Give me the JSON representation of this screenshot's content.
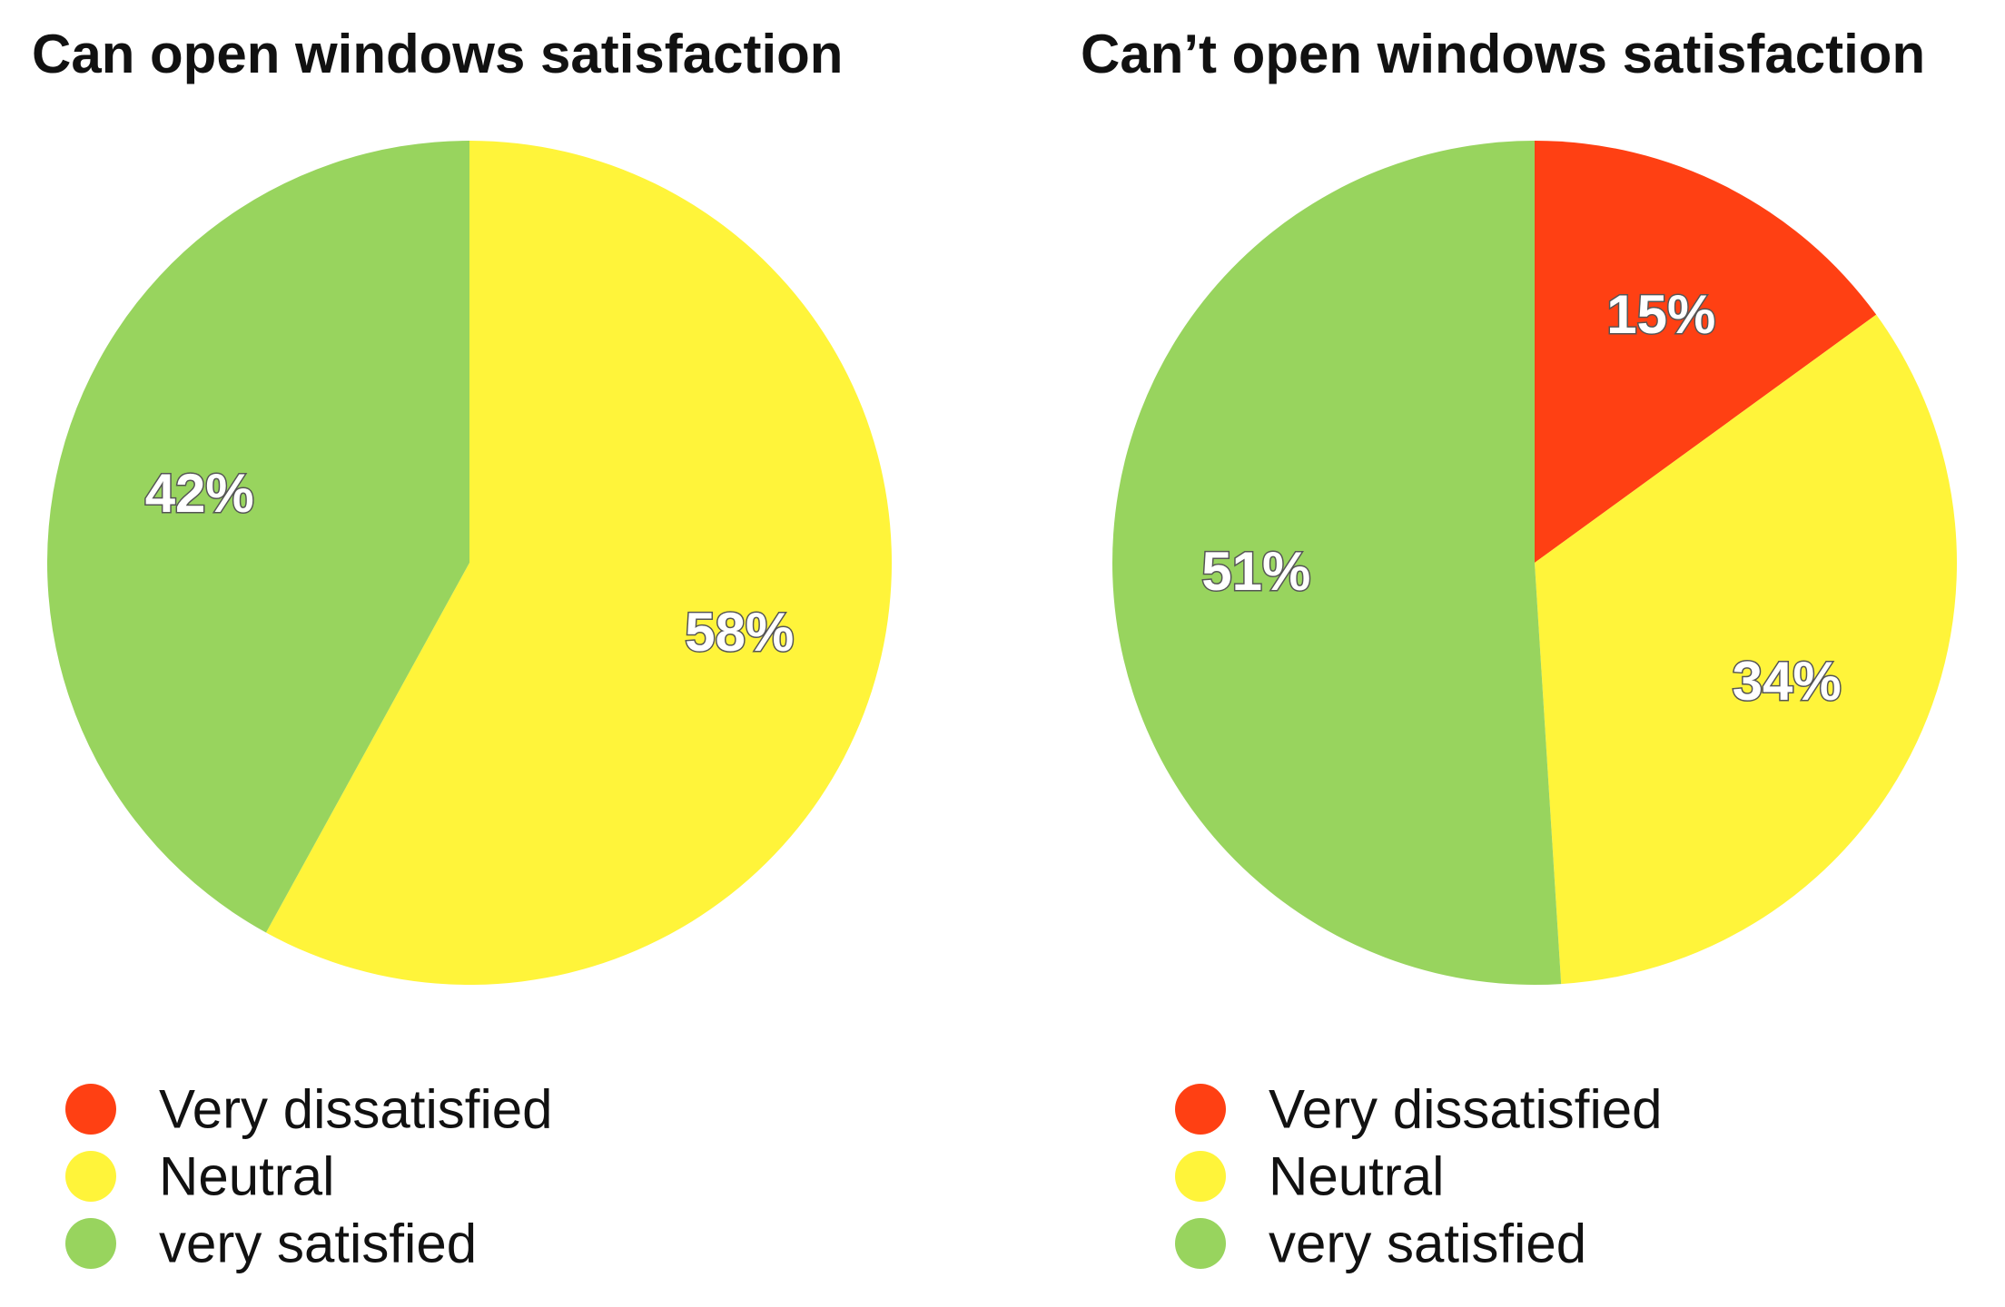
{
  "chart_data": [
    {
      "type": "pie",
      "title": "Can open windows satisfaction",
      "categories": [
        "Very dissatisfied",
        "Neutral",
        "very satisfied"
      ],
      "values": [
        0,
        58,
        42
      ],
      "labels": [
        "",
        "58%",
        "42%"
      ],
      "colors": [
        "#FF4013",
        "#FFF43A",
        "#98D45E"
      ],
      "legend": [
        "Very dissatisfied",
        "Neutral",
        "very satisfied"
      ],
      "legend_position": "bottom"
    },
    {
      "type": "pie",
      "title": "Can’t open windows satisfaction",
      "categories": [
        "Very dissatisfied",
        "Neutral",
        "very satisfied"
      ],
      "values": [
        15,
        34,
        51
      ],
      "labels": [
        "15%",
        "34%",
        "51%"
      ],
      "colors": [
        "#FF4013",
        "#FFF43A",
        "#98D45E"
      ],
      "legend": [
        "Very dissatisfied",
        "Neutral",
        "very satisfied"
      ],
      "legend_position": "bottom"
    }
  ]
}
